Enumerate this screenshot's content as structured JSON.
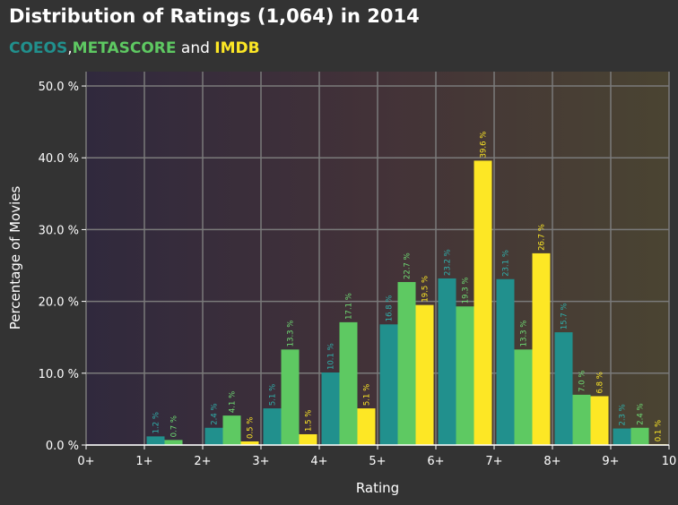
{
  "header": {
    "title": "Distribution  of Ratings (1,064) in 2014",
    "subtitle": {
      "part1": "COEOS",
      "sep1": ",",
      "part2": "METASCORE",
      "sep2": " and ",
      "part3": "IMDB"
    }
  },
  "colors": {
    "background": "#333333",
    "coeos": "#21908d",
    "metascore": "#5ec962",
    "imdb": "#fde725",
    "grid": "#7a7a7a"
  },
  "chart_data": {
    "type": "bar",
    "title": "Distribution  of Ratings (1,064) in 2014",
    "xlabel": "Rating",
    "ylabel": "Percentage of Movies",
    "categories": [
      "0+",
      "1+",
      "2+",
      "3+",
      "4+",
      "5+",
      "6+",
      "7+",
      "8+",
      "9+"
    ],
    "x_ticks": [
      "0+",
      "1+",
      "2+",
      "3+",
      "4+",
      "5+",
      "6+",
      "7+",
      "8+",
      "9+",
      "10"
    ],
    "y_ticks": [
      "0.0 %",
      "10.0 %",
      "20.0 %",
      "30.0 %",
      "40.0 %",
      "50.0 %"
    ],
    "ylim": [
      0,
      52
    ],
    "grid": true,
    "series": [
      {
        "name": "COEOS",
        "values": [
          0,
          1.2,
          2.4,
          5.1,
          10.1,
          16.8,
          23.2,
          23.1,
          15.7,
          2.3
        ],
        "labels": [
          "",
          "1.2 %",
          "2.4 %",
          "5.1 %",
          "10.1 %",
          "16.8 %",
          "23.2 %",
          "23.1 %",
          "15.7 %",
          "2.3 %"
        ]
      },
      {
        "name": "METASCORE",
        "values": [
          0,
          0.7,
          4.1,
          13.3,
          17.1,
          22.7,
          19.3,
          13.3,
          7.0,
          2.4
        ],
        "labels": [
          "",
          "0.7 %",
          "4.1 %",
          "13.3 %",
          "17.1 %",
          "22.7 %",
          "19.3 %",
          "13.3 %",
          "7.0 %",
          "2.4 %"
        ]
      },
      {
        "name": "IMDB",
        "values": [
          0,
          0,
          0.5,
          1.5,
          5.1,
          19.5,
          39.6,
          26.7,
          6.8,
          0.1
        ],
        "labels": [
          "",
          "",
          "0.5 %",
          "1.5 %",
          "5.1 %",
          "19.5 %",
          "39.6 %",
          "26.7 %",
          "6.8 %",
          "0.1 %"
        ]
      }
    ]
  }
}
